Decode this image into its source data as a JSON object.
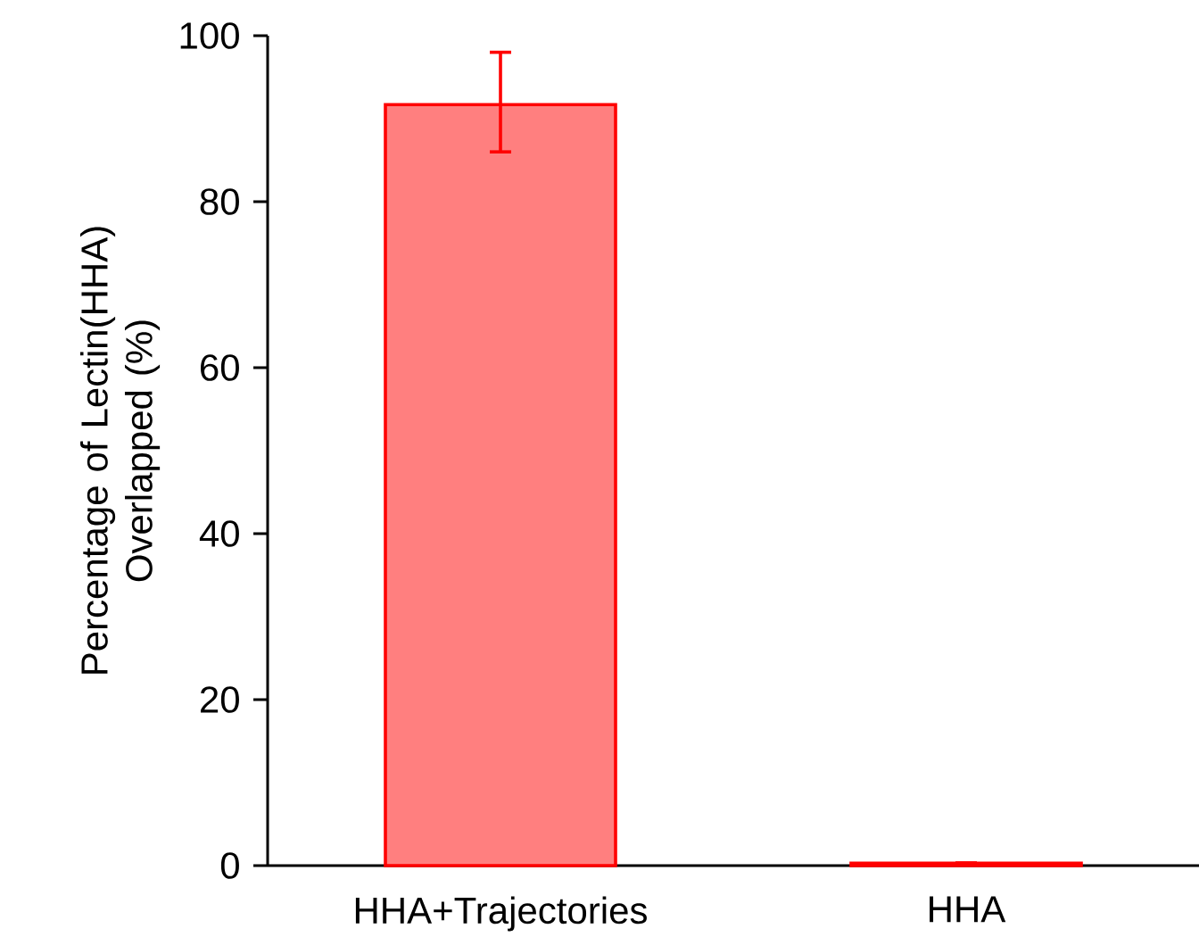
{
  "chart_data": {
    "type": "bar",
    "ylabel": "Percentage of Lectin(HHA) Overlapped (%)",
    "categories": [
      "HHA+Trajectories",
      "HHA"
    ],
    "values": [
      91.7,
      0.3
    ],
    "errors": [
      [
        86,
        98
      ],
      null
    ],
    "color": "#ff7f7f",
    "ylim": [
      0,
      100
    ],
    "yticks": [
      0,
      20,
      40,
      60,
      80,
      100
    ]
  }
}
